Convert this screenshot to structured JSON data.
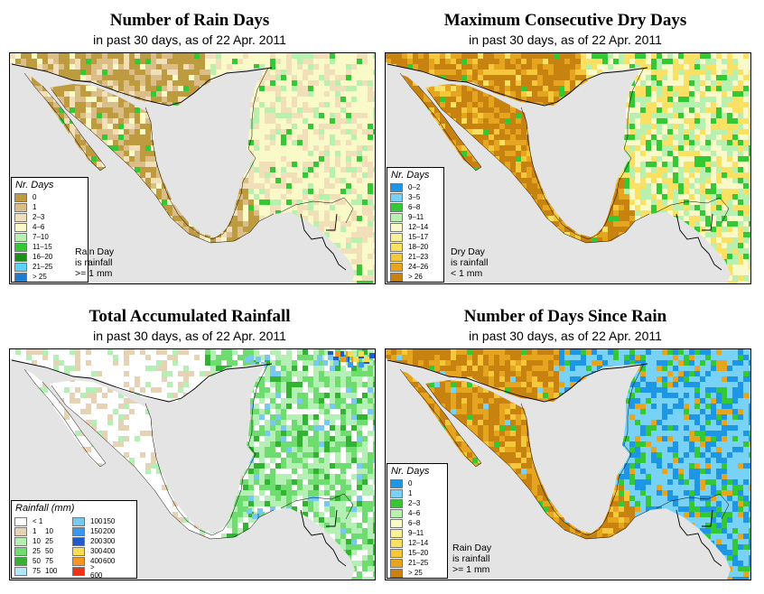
{
  "panels": {
    "rain_days": {
      "title": "Number of Rain Days",
      "subtitle": "in past 30 days, as of  22 Apr. 2011",
      "legend_title": "Nr. Days",
      "legend": [
        {
          "label": "0",
          "color": "#bf9b40"
        },
        {
          "label": "1",
          "color": "#dbbd88"
        },
        {
          "label": "2–3",
          "color": "#f0dfb8"
        },
        {
          "label": "4–6",
          "color": "#fafac8"
        },
        {
          "label": "7–10",
          "color": "#b8f0b0"
        },
        {
          "label": "11–15",
          "color": "#34c834"
        },
        {
          "label": "16–20",
          "color": "#1a8f1a"
        },
        {
          "label": "21–25",
          "color": "#5ad2f5"
        },
        {
          "label": "> 25",
          "color": "#1e7ad2"
        }
      ],
      "note": [
        "Rain Day",
        "is rainfall",
        ">= 1 mm"
      ]
    },
    "dry_days": {
      "title": "Maximum Consecutive Dry Days",
      "subtitle": "in past 30 days, as of  22 Apr. 2011",
      "legend_title": "Nr. Days",
      "legend": [
        {
          "label": "0–2",
          "color": "#1e96e6"
        },
        {
          "label": "3–5",
          "color": "#78d2f5"
        },
        {
          "label": "6–8",
          "color": "#34c834"
        },
        {
          "label": "9–11",
          "color": "#b8f0b0"
        },
        {
          "label": "12–14",
          "color": "#fafac8"
        },
        {
          "label": "15–17",
          "color": "#faf096"
        },
        {
          "label": "18–20",
          "color": "#fae164"
        },
        {
          "label": "21–23",
          "color": "#f5c83c"
        },
        {
          "label": "24–26",
          "color": "#e6a51e"
        },
        {
          "label": "> 26",
          "color": "#c8820f"
        }
      ],
      "note": [
        "Dry Day",
        "is rainfall",
        "< 1 mm"
      ]
    },
    "rainfall": {
      "title": "Total Accumulated Rainfall",
      "subtitle": "in past 30 days, as of  22 Apr. 2011",
      "legend_title": "Rainfall (mm)",
      "legend": [
        {
          "lo": "< 1",
          "hi": "",
          "color": "#ffffff"
        },
        {
          "lo": "100",
          "hi": "150",
          "color": "#78c8f0"
        },
        {
          "lo": "1",
          "hi": "10",
          "color": "#e6d2b4"
        },
        {
          "lo": "150",
          "hi": "200",
          "color": "#3c96f0"
        },
        {
          "lo": "10",
          "hi": "25",
          "color": "#b4f0b4"
        },
        {
          "lo": "200",
          "hi": "300",
          "color": "#1e5ad2"
        },
        {
          "lo": "25",
          "hi": "50",
          "color": "#6edc6e"
        },
        {
          "lo": "300",
          "hi": "400",
          "color": "#fadc50"
        },
        {
          "lo": "50",
          "hi": "75",
          "color": "#32b432"
        },
        {
          "lo": "400",
          "hi": "600",
          "color": "#f5961e"
        },
        {
          "lo": "75",
          "hi": "100",
          "color": "#b4e6fa"
        },
        {
          "lo": "> 600",
          "hi": "",
          "color": "#f03214"
        }
      ]
    },
    "since_rain": {
      "title": "Number of Days Since Rain",
      "subtitle": "in past 30 days, as of  22 Apr. 2011",
      "legend_title": "Nr. Days",
      "legend": [
        {
          "label": "0",
          "color": "#1e96e6"
        },
        {
          "label": "1",
          "color": "#78d2f5"
        },
        {
          "label": "2–3",
          "color": "#34c834"
        },
        {
          "label": "4–6",
          "color": "#b8f0b0"
        },
        {
          "label": "6–8",
          "color": "#fafac8"
        },
        {
          "label": "9–11",
          "color": "#faf096"
        },
        {
          "label": "12–14",
          "color": "#fae164"
        },
        {
          "label": "15–20",
          "color": "#f5c83c"
        },
        {
          "label": "21–25",
          "color": "#e6a51e"
        },
        {
          "label": "> 25",
          "color": "#c8820f"
        }
      ],
      "note": [
        "Rain Day",
        "is rainfall",
        ">= 1 mm"
      ]
    }
  },
  "colors": {
    "ocean": "#e4e4e4",
    "border": "#000000"
  }
}
